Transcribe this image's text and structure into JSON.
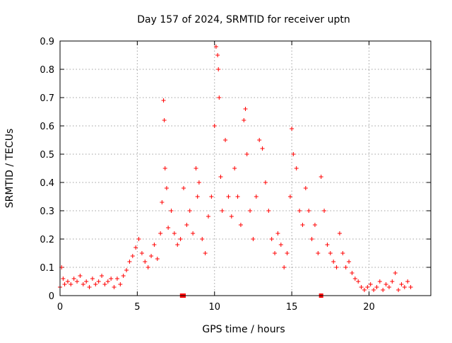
{
  "chart_data": {
    "type": "scatter",
    "title": "Day 157 of 2024, SRMTID for receiver uptn",
    "xlabel": "GPS time / hours",
    "ylabel": "SRMTID / TECUs",
    "xlim": [
      0,
      24
    ],
    "ylim": [
      0,
      0.9
    ],
    "xticks": [
      0,
      5,
      10,
      15,
      20
    ],
    "xtick_labels": [
      "0",
      "5",
      "10",
      "15",
      "20"
    ],
    "yticks": [
      0,
      0.1,
      0.2,
      0.3,
      0.4,
      0.5,
      0.6,
      0.7,
      0.8,
      0.9
    ],
    "ytick_labels": [
      "0",
      "0.1",
      "0.2",
      "0.3",
      "0.4",
      "0.5",
      "0.6",
      "0.7",
      "0.8",
      "0.9"
    ],
    "grid": true,
    "marker": "+",
    "series": [
      {
        "name": "SRMTID",
        "color": "#ff0000",
        "x": [
          0.0,
          0.1,
          0.2,
          0.3,
          0.5,
          0.7,
          0.9,
          1.1,
          1.3,
          1.5,
          1.7,
          1.9,
          2.1,
          2.3,
          2.5,
          2.7,
          2.9,
          3.1,
          3.3,
          3.5,
          3.7,
          3.9,
          4.1,
          4.3,
          4.5,
          4.7,
          4.9,
          5.1,
          5.3,
          5.5,
          5.7,
          5.9,
          6.1,
          6.3,
          6.5,
          6.6,
          6.7,
          6.75,
          6.8,
          6.9,
          7.0,
          7.2,
          7.4,
          7.6,
          7.8,
          8.0,
          8.2,
          8.4,
          8.6,
          8.8,
          8.9,
          9.0,
          9.2,
          9.4,
          9.6,
          9.8,
          10.0,
          10.1,
          10.2,
          10.25,
          10.3,
          10.4,
          10.5,
          10.7,
          10.9,
          11.1,
          11.3,
          11.5,
          11.7,
          11.9,
          12.0,
          12.1,
          12.3,
          12.5,
          12.7,
          12.9,
          13.1,
          13.3,
          13.5,
          13.7,
          13.9,
          14.1,
          14.3,
          14.5,
          14.7,
          14.9,
          15.0,
          15.1,
          15.3,
          15.5,
          15.7,
          15.9,
          16.1,
          16.3,
          16.5,
          16.7,
          16.9,
          17.1,
          17.3,
          17.5,
          17.7,
          17.9,
          18.1,
          18.3,
          18.5,
          18.7,
          18.9,
          19.1,
          19.3,
          19.5,
          19.7,
          19.9,
          20.1,
          20.3,
          20.5,
          20.7,
          20.9,
          21.1,
          21.3,
          21.5,
          21.7,
          21.9,
          22.1,
          22.3,
          22.5,
          22.7
        ],
        "y": [
          0.03,
          0.1,
          0.06,
          0.04,
          0.05,
          0.04,
          0.06,
          0.05,
          0.07,
          0.04,
          0.05,
          0.03,
          0.06,
          0.04,
          0.05,
          0.07,
          0.04,
          0.05,
          0.06,
          0.03,
          0.06,
          0.04,
          0.07,
          0.09,
          0.12,
          0.14,
          0.17,
          0.2,
          0.15,
          0.12,
          0.1,
          0.14,
          0.18,
          0.13,
          0.22,
          0.33,
          0.69,
          0.62,
          0.45,
          0.38,
          0.24,
          0.3,
          0.22,
          0.18,
          0.2,
          0.38,
          0.25,
          0.3,
          0.22,
          0.45,
          0.35,
          0.4,
          0.2,
          0.15,
          0.28,
          0.35,
          0.6,
          0.88,
          0.85,
          0.8,
          0.7,
          0.42,
          0.3,
          0.55,
          0.35,
          0.28,
          0.45,
          0.35,
          0.25,
          0.62,
          0.66,
          0.5,
          0.3,
          0.2,
          0.35,
          0.55,
          0.52,
          0.4,
          0.3,
          0.2,
          0.15,
          0.22,
          0.18,
          0.1,
          0.15,
          0.35,
          0.59,
          0.5,
          0.45,
          0.3,
          0.25,
          0.38,
          0.3,
          0.2,
          0.25,
          0.15,
          0.42,
          0.3,
          0.18,
          0.15,
          0.12,
          0.1,
          0.22,
          0.15,
          0.1,
          0.12,
          0.08,
          0.06,
          0.05,
          0.03,
          0.02,
          0.03,
          0.04,
          0.02,
          0.03,
          0.05,
          0.02,
          0.04,
          0.03,
          0.05,
          0.08,
          0.02,
          0.04,
          0.03,
          0.05,
          0.03
        ]
      },
      {
        "name": "baseline markers",
        "color": "#ff0000",
        "marker": "square",
        "x": [
          7.9,
          8.0,
          16.9
        ],
        "y": [
          0,
          0,
          0
        ]
      }
    ]
  }
}
